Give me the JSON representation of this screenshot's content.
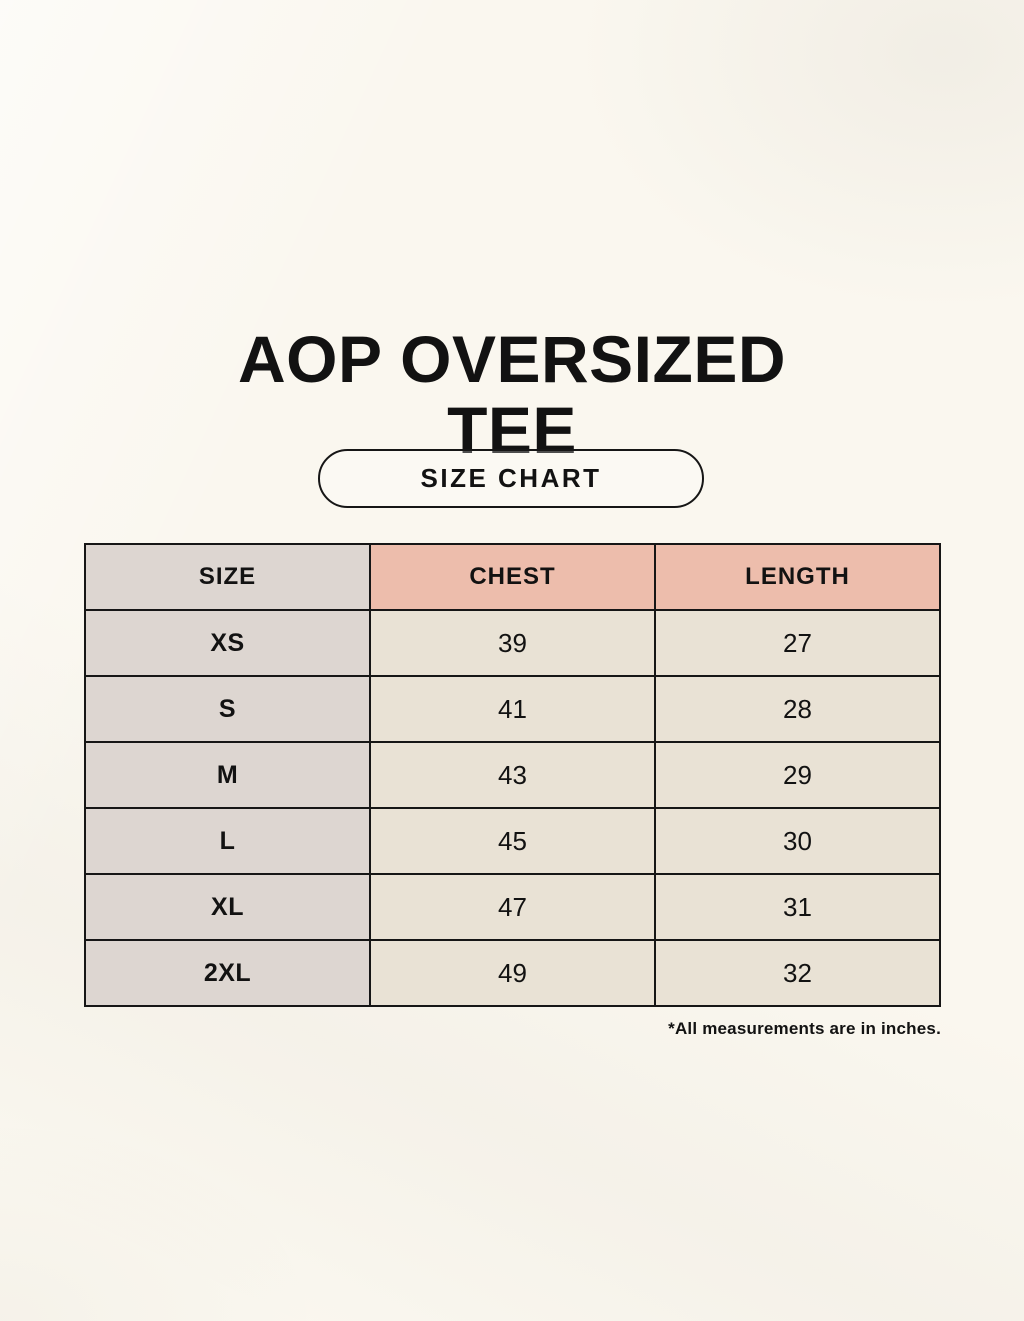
{
  "page": {
    "background_color": "#faf7ef",
    "border_color": "#161616",
    "header_pink": "#edbdac",
    "cell_gray": "#ddd6d1",
    "cell_cream": "#e9e2d5",
    "text_color": "#121212"
  },
  "header": {
    "title_lines": [
      "AOP OVERSIZED",
      "TEE"
    ],
    "badge_label": "SIZE CHART"
  },
  "size_chart": {
    "type": "table",
    "columns": [
      "SIZE",
      "CHEST",
      "LENGTH"
    ],
    "rows": [
      [
        "XS",
        "39",
        "27"
      ],
      [
        "S",
        "41",
        "28"
      ],
      [
        "M",
        "43",
        "29"
      ],
      [
        "L",
        "45",
        "30"
      ],
      [
        "XL",
        "47",
        "31"
      ],
      [
        "2XL",
        "49",
        "32"
      ]
    ],
    "footnote": "*All measurements are in inches."
  }
}
